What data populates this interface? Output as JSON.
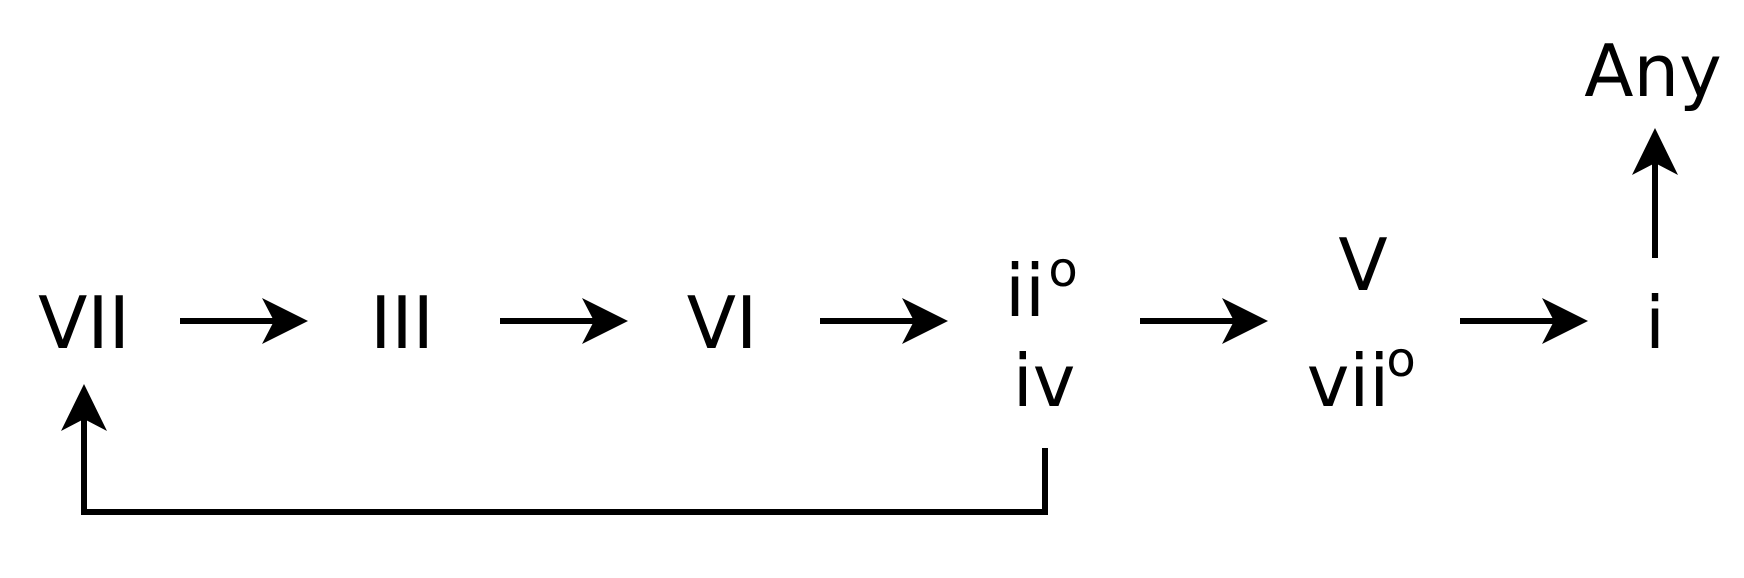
{
  "diagram": {
    "nodes": {
      "vii_major": {
        "label": "VII"
      },
      "iii_major": {
        "label": "III"
      },
      "vi_major": {
        "label": "VI"
      },
      "ii_dim": {
        "label": "ii",
        "sup": "o"
      },
      "iv_minor": {
        "label": "iv"
      },
      "v_major": {
        "label": "V"
      },
      "vii_dim": {
        "label": "vii",
        "sup": "o"
      },
      "i_minor": {
        "label": "i"
      },
      "any": {
        "label": "Any"
      }
    },
    "edges": [
      {
        "from": "VII",
        "to": "III"
      },
      {
        "from": "III",
        "to": "VI"
      },
      {
        "from": "VI",
        "to": "ii°/iv"
      },
      {
        "from": "ii°/iv",
        "to": "V/vii°"
      },
      {
        "from": "V/vii°",
        "to": "i"
      },
      {
        "from": "i",
        "to": "Any"
      },
      {
        "from": "ii°/iv",
        "to": "VII"
      }
    ],
    "colors": {
      "stroke": "#000000",
      "background": "#ffffff"
    }
  }
}
